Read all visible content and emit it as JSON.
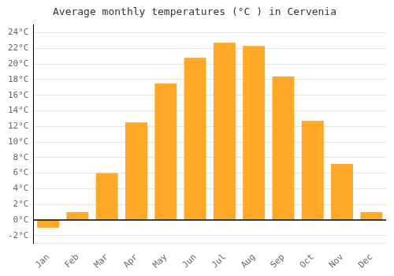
{
  "chart_data": {
    "type": "bar",
    "title": "Average monthly temperatures (°C ) in Cervenia",
    "categories": [
      "Jan",
      "Feb",
      "Mar",
      "Apr",
      "May",
      "Jun",
      "Jul",
      "Aug",
      "Sep",
      "Oct",
      "Nov",
      "Dec"
    ],
    "values": [
      -1.0,
      1.0,
      6.0,
      12.5,
      17.5,
      20.8,
      22.7,
      22.3,
      18.4,
      12.7,
      7.2,
      1.0
    ],
    "color": "#FFA726",
    "ylim": [
      -3,
      25
    ],
    "yticks": [
      {
        "value": -2,
        "label": "-2°C"
      },
      {
        "value": 0,
        "label": "0°C"
      },
      {
        "value": 2,
        "label": "2°C"
      },
      {
        "value": 4,
        "label": "4°C"
      },
      {
        "value": 6,
        "label": "6°C"
      },
      {
        "value": 8,
        "label": "8°C"
      },
      {
        "value": 10,
        "label": "10°C"
      },
      {
        "value": 12,
        "label": "12°C"
      },
      {
        "value": 14,
        "label": "14°C"
      },
      {
        "value": 16,
        "label": "16°C"
      },
      {
        "value": 18,
        "label": "18°C"
      },
      {
        "value": 20,
        "label": "20°C"
      },
      {
        "value": 22,
        "label": "22°C"
      },
      {
        "value": 24,
        "label": "24°C"
      }
    ],
    "grid": true
  }
}
